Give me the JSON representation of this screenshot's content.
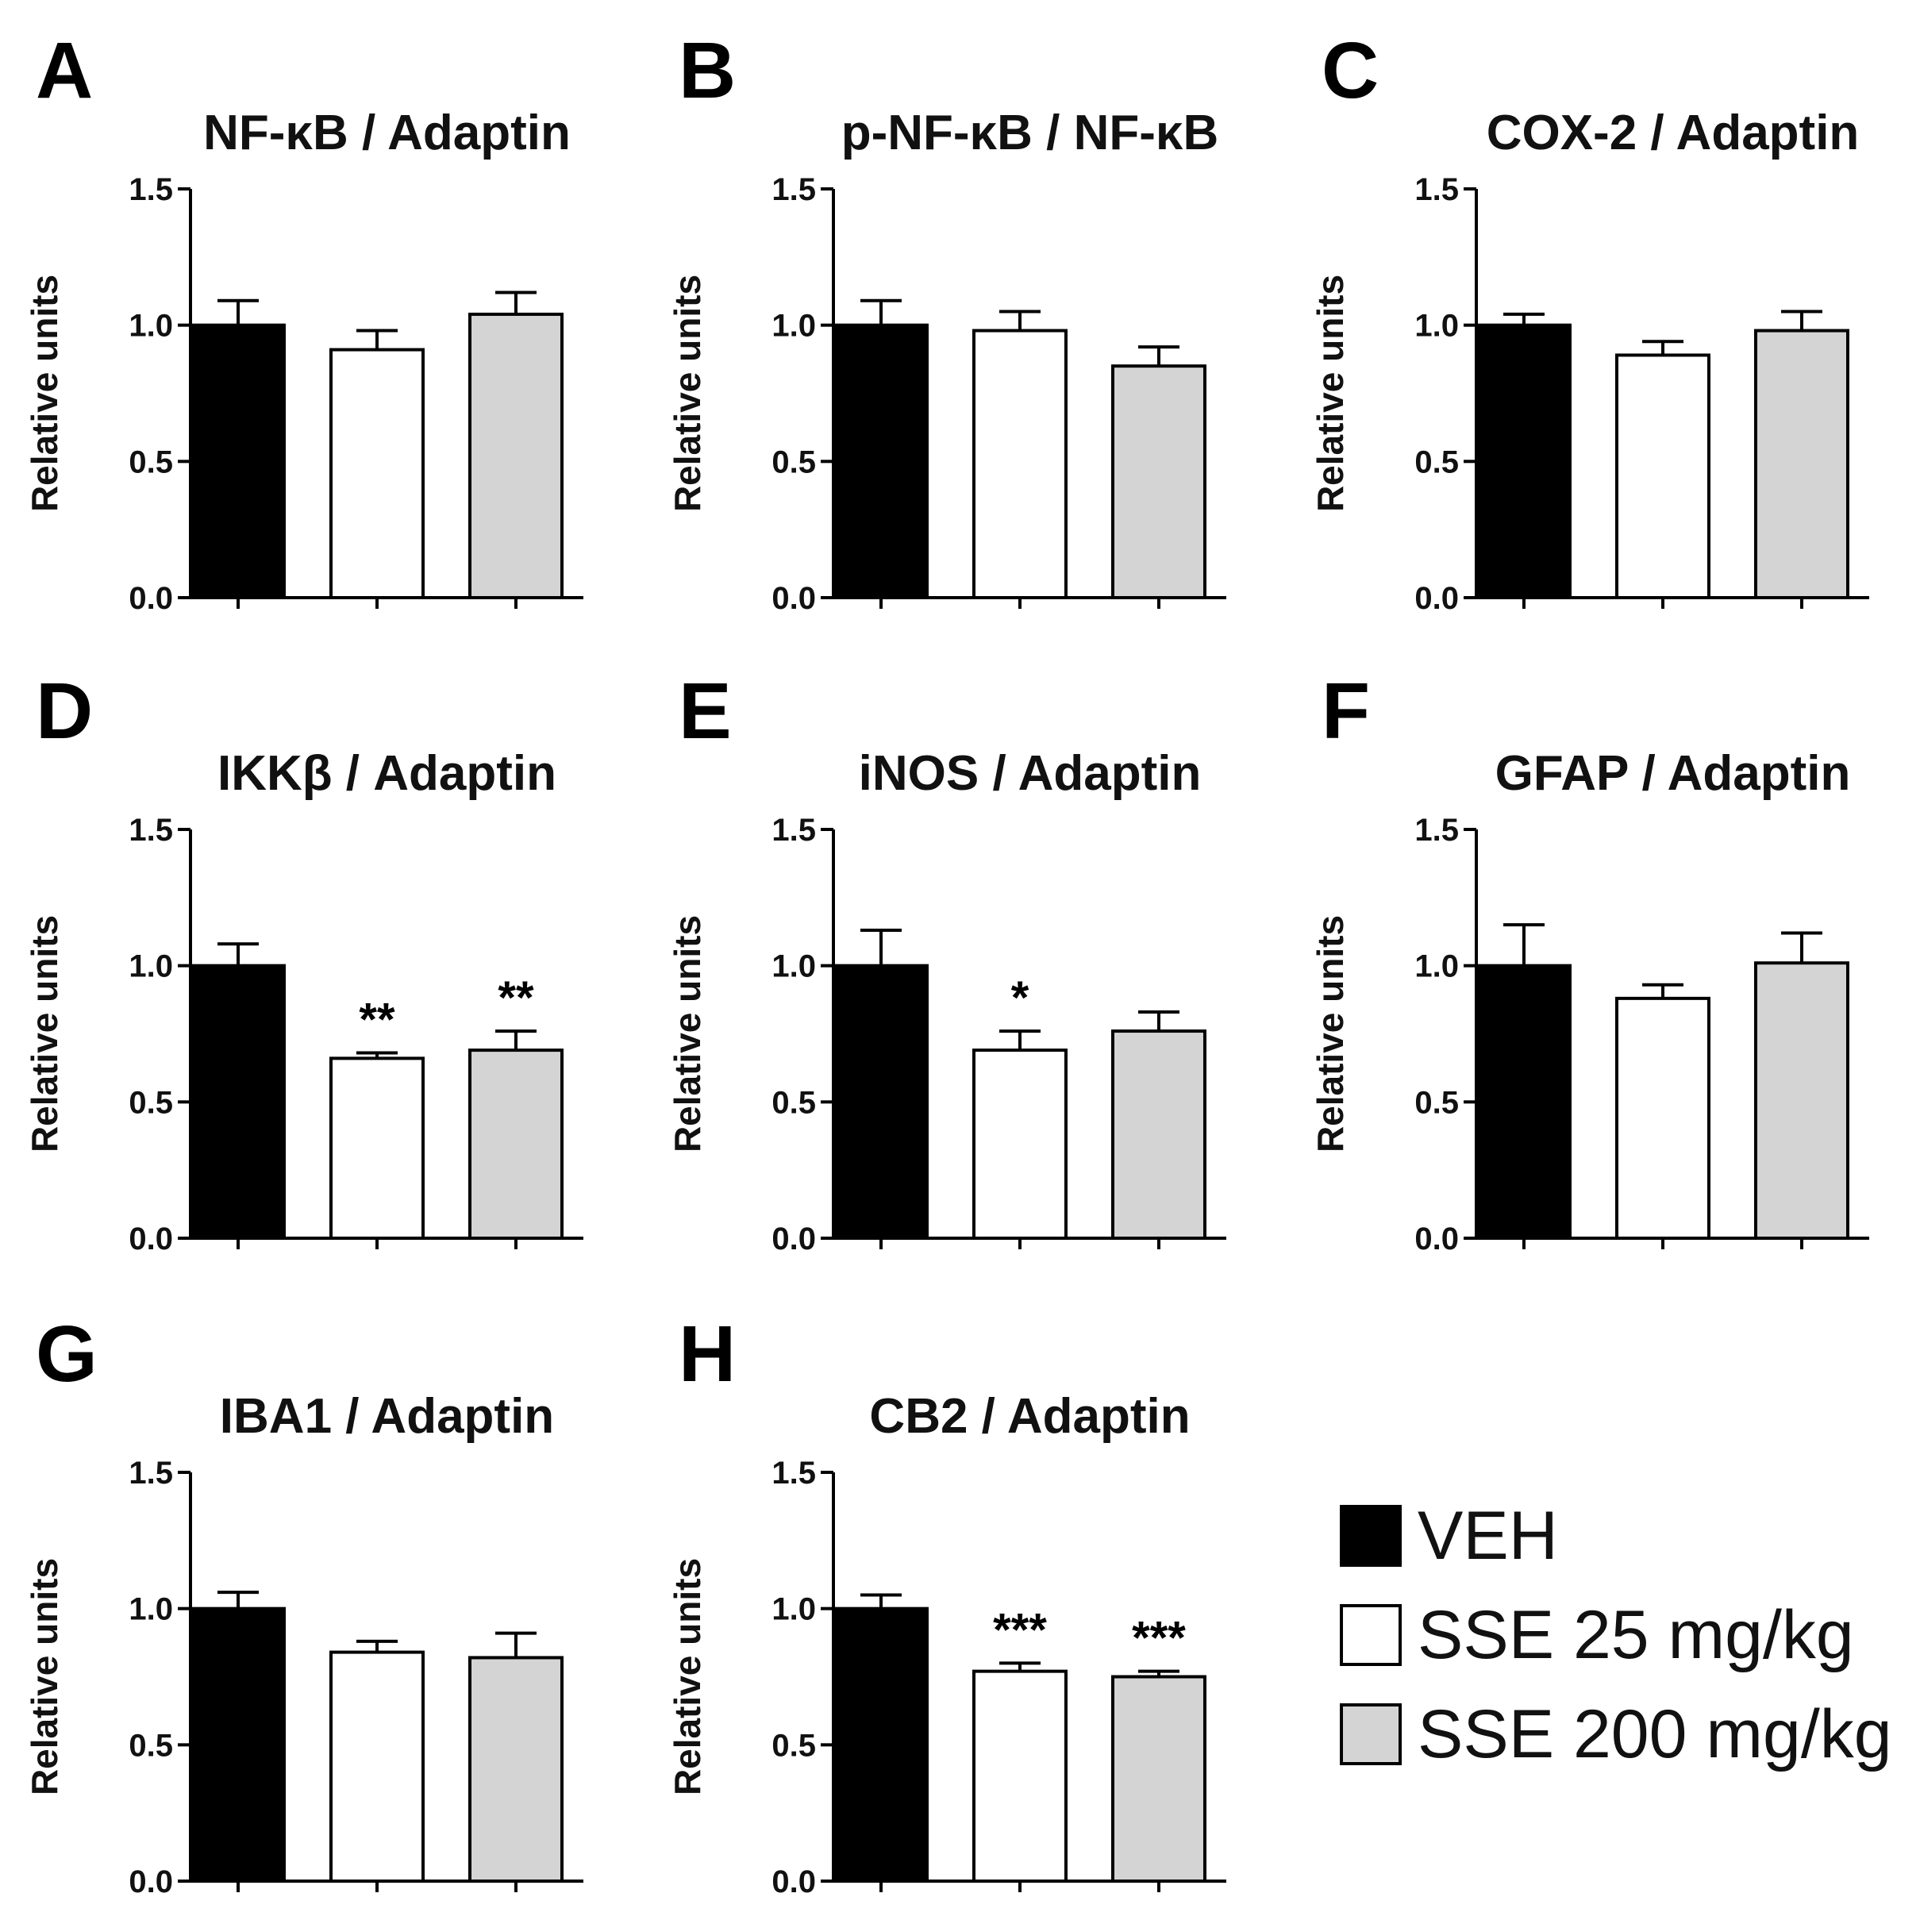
{
  "colors": {
    "VEH": "#000000",
    "SSE 25 mg/kg": "#ffffff",
    "SSE 200 mg/kg": "#d4d4d4"
  },
  "legend": {
    "items": [
      {
        "label": "VEH",
        "color": "#000000"
      },
      {
        "label": "SSE 25 mg/kg",
        "color": "#ffffff"
      },
      {
        "label": "SSE 200 mg/kg",
        "color": "#d4d4d4"
      }
    ]
  },
  "chart_data": [
    {
      "type": "bar",
      "panel": "A",
      "title": "NF-κB / Adaptin",
      "ylabel": "Relative units",
      "xlabel": "",
      "ylim": [
        0,
        1.5
      ],
      "yticks": [
        "0.0",
        "0.5",
        "1.0",
        "1.5"
      ],
      "categories": [
        "VEH",
        "SSE 25 mg/kg",
        "SSE 200 mg/kg"
      ],
      "values": [
        1.0,
        0.91,
        1.04
      ],
      "errors": [
        0.09,
        0.07,
        0.08
      ],
      "annotations": [
        "",
        "",
        ""
      ]
    },
    {
      "type": "bar",
      "panel": "B",
      "title": "p-NF-κB / NF-κB",
      "ylabel": "Relative units",
      "xlabel": "",
      "ylim": [
        0,
        1.5
      ],
      "yticks": [
        "0.0",
        "0.5",
        "1.0",
        "1.5"
      ],
      "categories": [
        "VEH",
        "SSE 25 mg/kg",
        "SSE 200 mg/kg"
      ],
      "values": [
        1.0,
        0.98,
        0.85
      ],
      "errors": [
        0.09,
        0.07,
        0.07
      ],
      "annotations": [
        "",
        "",
        ""
      ]
    },
    {
      "type": "bar",
      "panel": "C",
      "title": "COX-2 / Adaptin",
      "ylabel": "Relative units",
      "xlabel": "",
      "ylim": [
        0,
        1.5
      ],
      "yticks": [
        "0.0",
        "0.5",
        "1.0",
        "1.5"
      ],
      "categories": [
        "VEH",
        "SSE 25 mg/kg",
        "SSE 200 mg/kg"
      ],
      "values": [
        1.0,
        0.89,
        0.98
      ],
      "errors": [
        0.04,
        0.05,
        0.07
      ],
      "annotations": [
        "",
        "",
        ""
      ]
    },
    {
      "type": "bar",
      "panel": "D",
      "title": "IKKβ / Adaptin",
      "ylabel": "Relative units",
      "xlabel": "",
      "ylim": [
        0,
        1.5
      ],
      "yticks": [
        "0.0",
        "0.5",
        "1.0",
        "1.5"
      ],
      "categories": [
        "VEH",
        "SSE 25 mg/kg",
        "SSE 200 mg/kg"
      ],
      "values": [
        1.0,
        0.66,
        0.69
      ],
      "errors": [
        0.08,
        0.02,
        0.07
      ],
      "annotations": [
        "",
        "**",
        "**"
      ]
    },
    {
      "type": "bar",
      "panel": "E",
      "title": "iNOS / Adaptin",
      "ylabel": "Relative units",
      "xlabel": "",
      "ylim": [
        0,
        1.5
      ],
      "yticks": [
        "0.0",
        "0.5",
        "1.0",
        "1.5"
      ],
      "categories": [
        "VEH",
        "SSE 25 mg/kg",
        "SSE 200 mg/kg"
      ],
      "values": [
        1.0,
        0.69,
        0.76
      ],
      "errors": [
        0.13,
        0.07,
        0.07
      ],
      "annotations": [
        "",
        "*",
        ""
      ]
    },
    {
      "type": "bar",
      "panel": "F",
      "title": "GFAP / Adaptin",
      "ylabel": "Relative units",
      "xlabel": "",
      "ylim": [
        0,
        1.5
      ],
      "yticks": [
        "0.0",
        "0.5",
        "1.0",
        "1.5"
      ],
      "categories": [
        "VEH",
        "SSE 25 mg/kg",
        "SSE 200 mg/kg"
      ],
      "values": [
        1.0,
        0.88,
        1.01
      ],
      "errors": [
        0.15,
        0.05,
        0.11
      ],
      "annotations": [
        "",
        "",
        ""
      ]
    },
    {
      "type": "bar",
      "panel": "G",
      "title": "IBA1 / Adaptin",
      "ylabel": "Relative units",
      "xlabel": "",
      "ylim": [
        0,
        1.5
      ],
      "yticks": [
        "0.0",
        "0.5",
        "1.0",
        "1.5"
      ],
      "categories": [
        "VEH",
        "SSE 25 mg/kg",
        "SSE 200 mg/kg"
      ],
      "values": [
        1.0,
        0.84,
        0.82
      ],
      "errors": [
        0.06,
        0.04,
        0.09
      ],
      "annotations": [
        "",
        "",
        ""
      ]
    },
    {
      "type": "bar",
      "panel": "H",
      "title": "CB2 / Adaptin",
      "ylabel": "Relative units",
      "xlabel": "",
      "ylim": [
        0,
        1.5
      ],
      "yticks": [
        "0.0",
        "0.5",
        "1.0",
        "1.5"
      ],
      "categories": [
        "VEH",
        "SSE 25 mg/kg",
        "SSE 200 mg/kg"
      ],
      "values": [
        1.0,
        0.77,
        0.75
      ],
      "errors": [
        0.05,
        0.03,
        0.02
      ],
      "annotations": [
        "",
        "***",
        "***"
      ]
    }
  ]
}
